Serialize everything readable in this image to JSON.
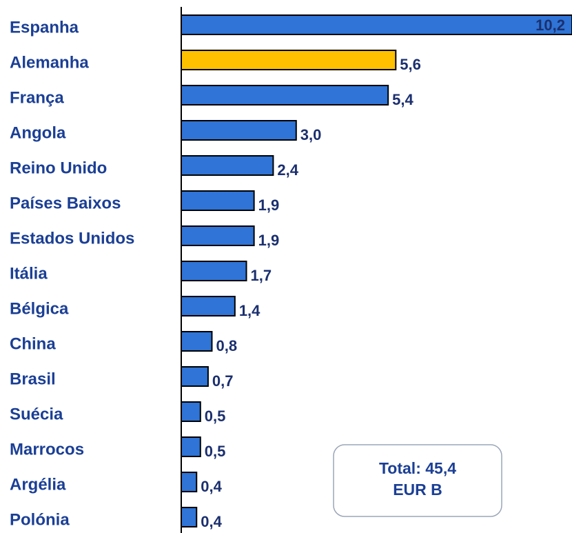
{
  "chart_data": {
    "type": "bar",
    "orientation": "horizontal",
    "categories": [
      "Espanha",
      "Alemanha",
      "França",
      "Angola",
      "Reino Unido",
      "Países Baixos",
      "Estados Unidos",
      "Itália",
      "Bélgica",
      "China",
      "Brasil",
      "Suécia",
      "Marrocos",
      "Argélia",
      "Polónia"
    ],
    "values": [
      10.2,
      5.6,
      5.4,
      3.0,
      2.4,
      1.9,
      1.9,
      1.7,
      1.4,
      0.8,
      0.7,
      0.5,
      0.5,
      0.4,
      0.4
    ],
    "value_labels": [
      "10,2",
      "5,6",
      "5,4",
      "3,0",
      "2,4",
      "1,9",
      "1,9",
      "1,7",
      "1,4",
      "0,8",
      "0,7",
      "0,5",
      "0,5",
      "0,4",
      "0,4"
    ],
    "colors": [
      "#2f74d6",
      "#ffc000",
      "#2f74d6",
      "#2f74d6",
      "#2f74d6",
      "#2f74d6",
      "#2f74d6",
      "#2f74d6",
      "#2f74d6",
      "#2f74d6",
      "#2f74d6",
      "#2f74d6",
      "#2f74d6",
      "#2f74d6",
      "#2f74d6"
    ],
    "xlim": [
      0,
      10.2
    ],
    "annotation": [
      "Total: 45,4",
      "EUR B"
    ]
  }
}
